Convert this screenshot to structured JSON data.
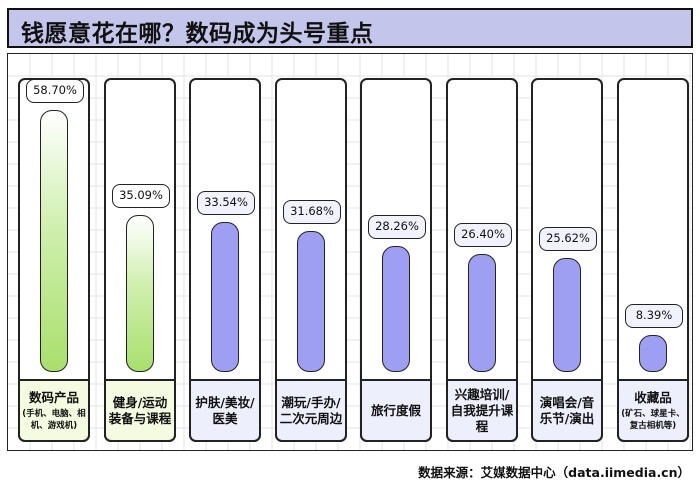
{
  "title": "钱愿意花在哪？数码成为头号重点",
  "source": "数据来源：艾媒数据中心（data.iimedia.cn）",
  "colors": {
    "green_bar": "#a9df6c",
    "purple_bar": "#9e9ff3",
    "title_bg": "#c3c5ea",
    "green_label_bg": "#f5fbe0",
    "purple_label_bg": "#eeeffc"
  },
  "chart_data": {
    "type": "bar",
    "title": "钱愿意花在哪？数码成为头号重点",
    "xlabel": "",
    "ylabel": "",
    "ylim": [
      0,
      60
    ],
    "categories": [
      {
        "name": "数码产品",
        "sub": "(手机、电脑、相机、游戏机)",
        "value": 58.7,
        "label": "58.70%",
        "color": "green"
      },
      {
        "name": "健身/运动装备与课程",
        "sub": "",
        "value": 35.09,
        "label": "35.09%",
        "color": "green"
      },
      {
        "name": "护肤/美妆/医美",
        "sub": "",
        "value": 33.54,
        "label": "33.54%",
        "color": "purple"
      },
      {
        "name": "潮玩/手办/二次元周边",
        "sub": "",
        "value": 31.68,
        "label": "31.68%",
        "color": "purple"
      },
      {
        "name": "旅行度假",
        "sub": "",
        "value": 28.26,
        "label": "28.26%",
        "color": "purple"
      },
      {
        "name": "兴趣培训/自我提升课程",
        "sub": "",
        "value": 26.4,
        "label": "26.40%",
        "color": "purple"
      },
      {
        "name": "演唱会/音乐节/演出",
        "sub": "",
        "value": 25.62,
        "label": "25.62%",
        "color": "purple"
      },
      {
        "name": "收藏品",
        "sub": "(矿石、球星卡、复古相机等)",
        "value": 8.39,
        "label": "8.39%",
        "color": "purple"
      }
    ],
    "grid": true,
    "legend": "none"
  }
}
